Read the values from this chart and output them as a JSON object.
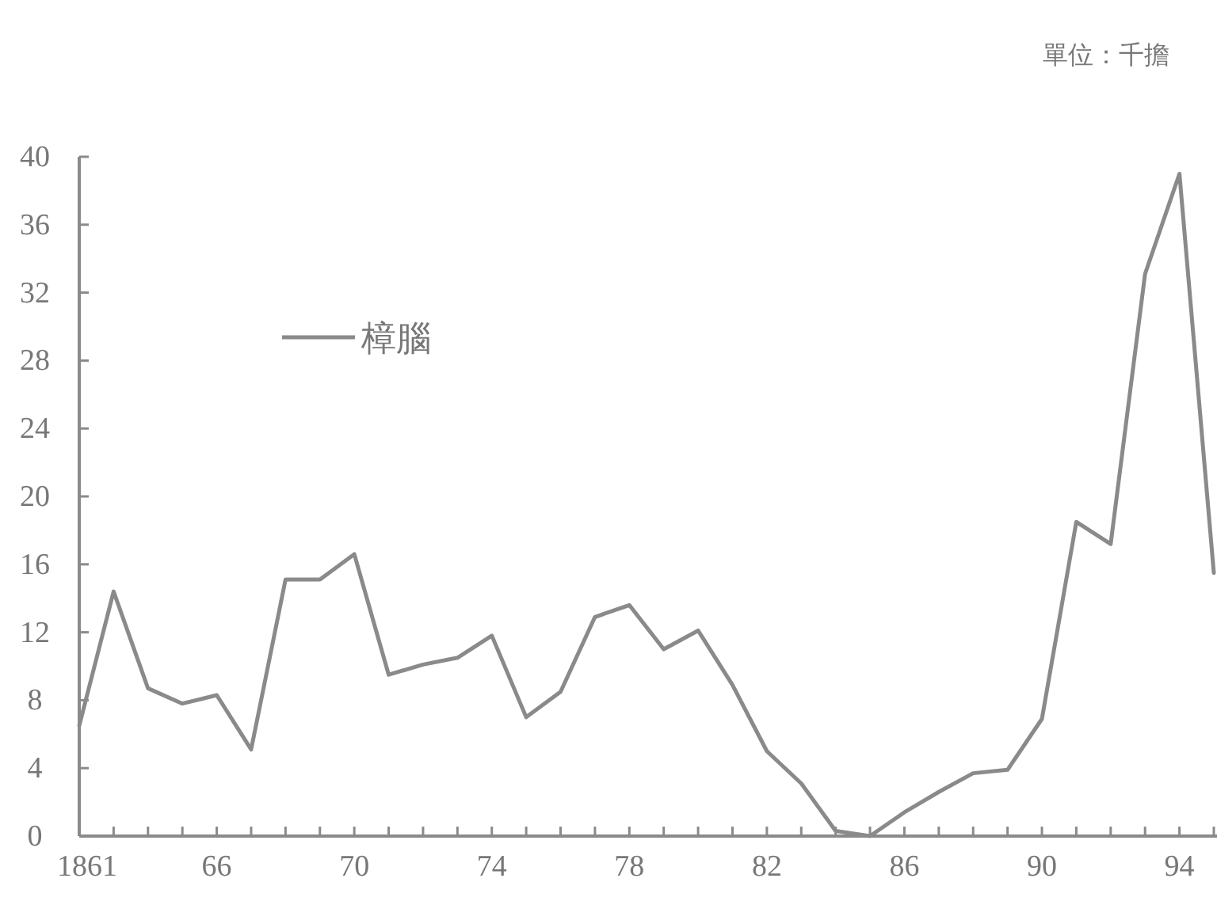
{
  "chart_data": {
    "type": "line",
    "annotations": [
      "單位：千擔"
    ],
    "categories": [
      "1861",
      null,
      null,
      null,
      "66",
      null,
      null,
      null,
      "70",
      null,
      null,
      null,
      "74",
      null,
      null,
      null,
      "78",
      null,
      null,
      null,
      "82",
      null,
      null,
      null,
      "86",
      null,
      null,
      null,
      "90",
      null,
      null,
      null,
      "94",
      null
    ],
    "series": [
      {
        "name": "樟腦",
        "color": "#8a8a8a",
        "values": [
          6.5,
          14.4,
          8.7,
          7.8,
          8.3,
          5.1,
          15.1,
          15.1,
          16.6,
          9.5,
          10.1,
          10.5,
          11.8,
          7.0,
          8.5,
          12.9,
          13.6,
          11.0,
          12.1,
          8.9,
          5.0,
          3.1,
          0.3,
          0,
          1.4,
          2.6,
          3.7,
          3.9,
          6.9,
          18.5,
          17.2,
          33.1,
          39.0,
          15.5
        ]
      }
    ],
    "ylim": [
      0,
      40
    ],
    "yticks": [
      0,
      4,
      8,
      12,
      16,
      20,
      24,
      28,
      32,
      36,
      40
    ],
    "grid": false,
    "legend": "top left",
    "marker": "none",
    "line_style": "solid"
  }
}
